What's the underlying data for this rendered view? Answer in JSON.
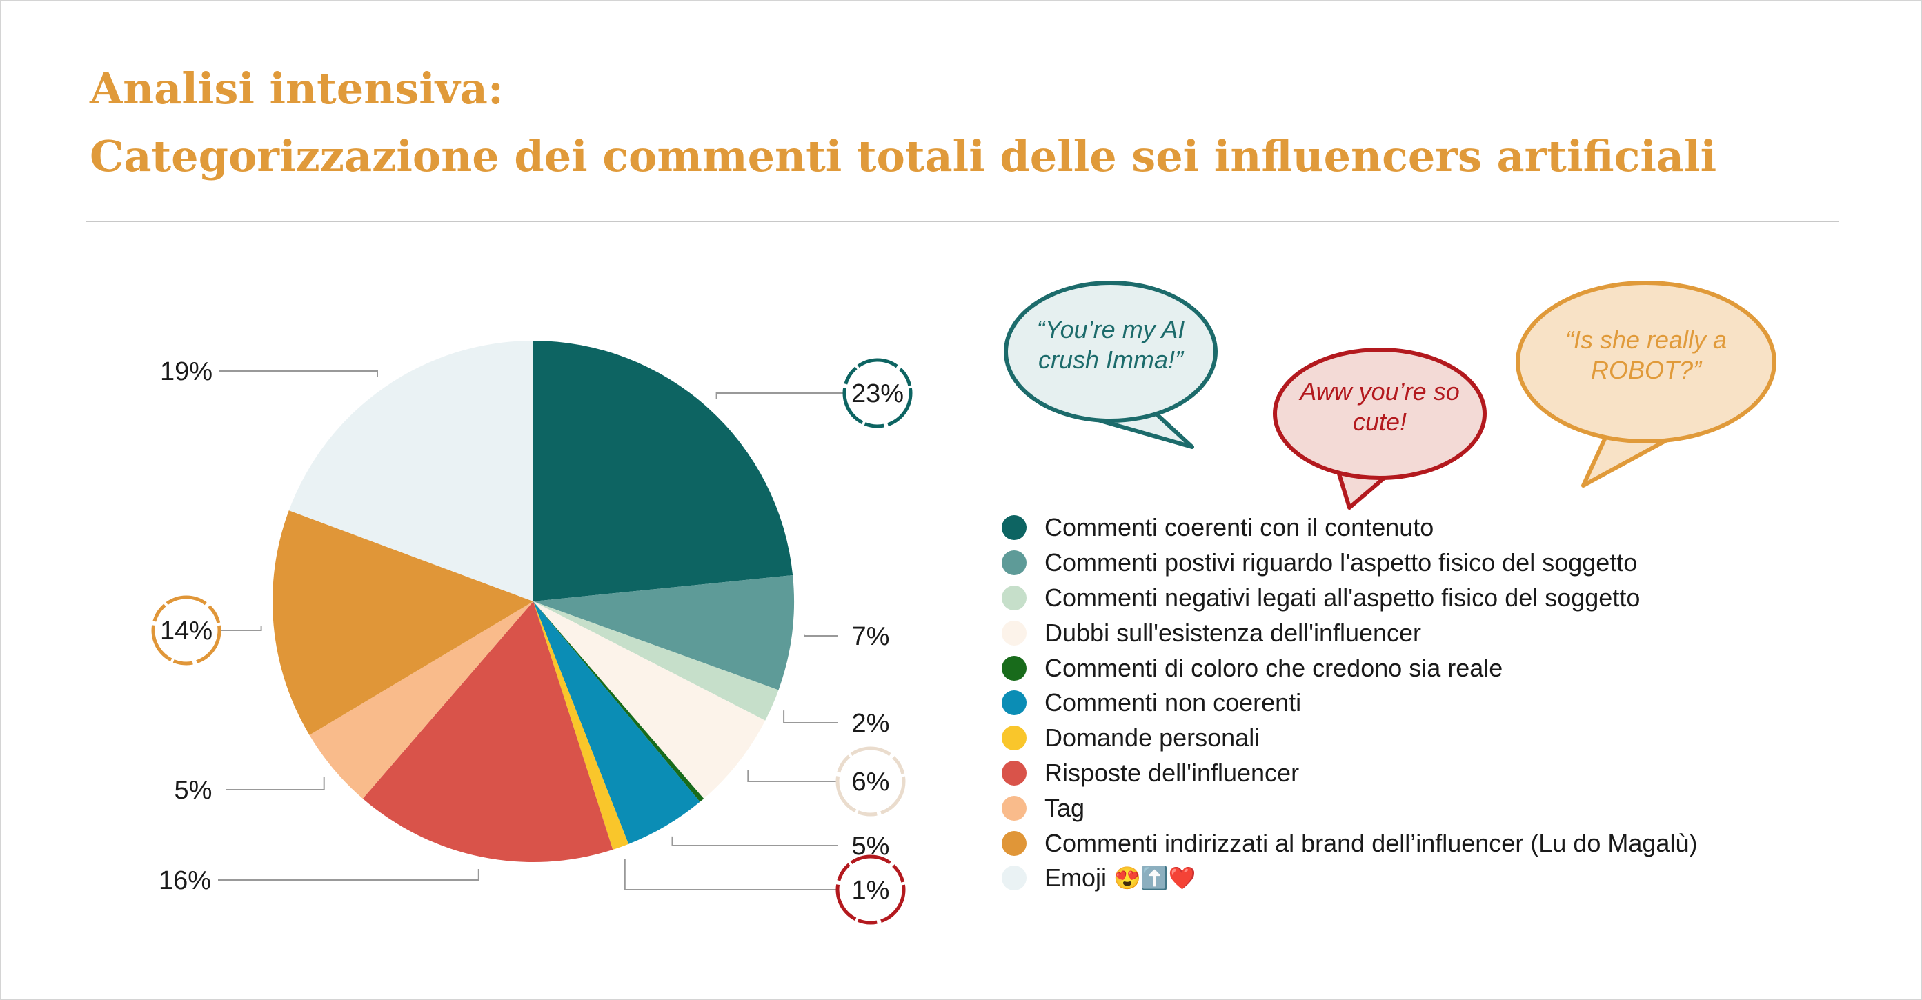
{
  "header": {
    "title": "Analisi intensiva:",
    "subtitle": "Categorizzazione dei commenti totali delle sei influencers artificiali"
  },
  "bubbles": [
    {
      "lines": [
        "“You’re my AI",
        "crush Imma!”"
      ],
      "color": "#1c6b6b",
      "fill": "#e6f0f0"
    },
    {
      "lines": [
        "Aww you’re so",
        "cute!"
      ],
      "color": "#b3191e",
      "fill": "#f3dad6"
    },
    {
      "lines": [
        "“Is she really a",
        "ROBOT?”"
      ],
      "color": "#e09a3a",
      "fill": "#f8e2c6"
    }
  ],
  "chart_data": {
    "type": "pie",
    "title": "",
    "slices": [
      {
        "label": "Commenti coerenti con il contenuto",
        "value": 23,
        "display": "23%",
        "color": "#0d6462",
        "highlight": "#0d6462"
      },
      {
        "label": "Commenti postivi riguardo l'aspetto fisico del soggetto",
        "value": 7,
        "display": "7%",
        "color": "#5e9b98"
      },
      {
        "label": "Commenti negativi legati all'aspetto fisico del soggetto",
        "value": 2,
        "display": "2%",
        "color": "#c6dfca"
      },
      {
        "label": "Dubbi sull'esistenza dell'influencer",
        "value": 6,
        "display": "6%",
        "color": "#fcf3ea",
        "highlight": "#eadccd"
      },
      {
        "label": "Commenti di coloro che credono sia reale",
        "value": 0.3,
        "display": "",
        "color": "#186b1b"
      },
      {
        "label": "Commenti non coerenti",
        "value": 5,
        "display": "5%",
        "color": "#0b8db5"
      },
      {
        "label": "Domande personali",
        "value": 1,
        "display": "1%",
        "color": "#f9c62b",
        "highlight": "#b3191e"
      },
      {
        "label": "Risposte dell'influencer",
        "value": 16,
        "display": "16%",
        "color": "#d9534a"
      },
      {
        "label": "Tag",
        "value": 5,
        "display": "5%",
        "color": "#f9bb8b"
      },
      {
        "label": "Commenti indirizzati al brand dell’influencer (Lu do Magalù)",
        "value": 14,
        "display": "14%",
        "color": "#e09638",
        "highlight": "#e09638"
      },
      {
        "label": "Emoji",
        "value": 19,
        "display": "19%",
        "color": "#eaf2f4"
      }
    ],
    "emoji_suffix": "😍⬆️❤️",
    "legend_position": "right"
  }
}
